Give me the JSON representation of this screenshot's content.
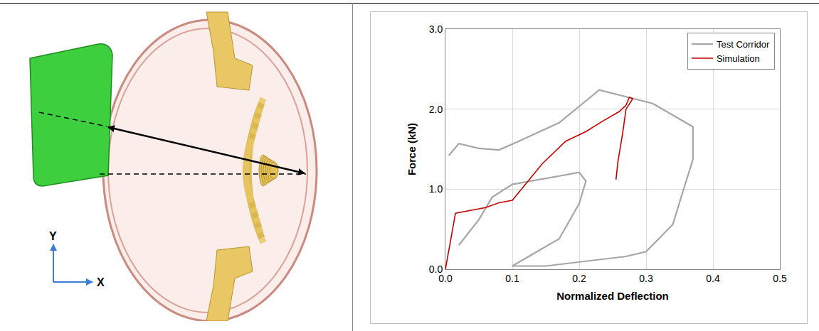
{
  "diagram": {
    "axis_labels": {
      "y": "Y",
      "x": "X"
    }
  },
  "chart_data": {
    "type": "line",
    "xlabel": "Normalized Deflection",
    "ylabel": "Force (kN)",
    "xlim": [
      0,
      0.5
    ],
    "xticks": [
      {
        "value": 0,
        "label": "0.0"
      },
      0.1,
      0.2,
      0.3,
      0.4,
      0.5
    ],
    "ylim": [
      0,
      3
    ],
    "yticks": [
      {
        "value": 0,
        "label": "0.0"
      },
      {
        "value": 1,
        "label": "1.0"
      },
      {
        "value": 2,
        "label": "2.0"
      },
      {
        "value": 3,
        "label": "3.0"
      }
    ],
    "grid": true,
    "legend": "upper right",
    "series": [
      {
        "name": "Test Corridor",
        "color": "#a6a6a6",
        "x": [
          0.005,
          0.02,
          0.05,
          0.08,
          0.11,
          0.17,
          0.23,
          0.31,
          0.37,
          0.37,
          0.355,
          0.34,
          0.3,
          0.27,
          0.15,
          0.1,
          0.17,
          0.2,
          0.21,
          0.2,
          0.1,
          0.07,
          0.05,
          0.02
        ],
        "values": [
          1.42,
          1.57,
          1.51,
          1.49,
          1.6,
          1.83,
          2.24,
          2.07,
          1.78,
          1.37,
          0.97,
          0.56,
          0.22,
          0.16,
          0.04,
          0.04,
          0.38,
          0.82,
          1.1,
          1.21,
          1.06,
          0.9,
          0.62,
          0.3
        ]
      },
      {
        "name": "Simulation",
        "color": "#c00000",
        "x": [
          0,
          0.015,
          0.06,
          0.08,
          0.1,
          0.145,
          0.18,
          0.21,
          0.235,
          0.26,
          0.27,
          0.275,
          0.28,
          0.27,
          0.265,
          0.258,
          0.255
        ],
        "values": [
          0,
          0.7,
          0.77,
          0.83,
          0.86,
          1.32,
          1.6,
          1.72,
          1.85,
          1.97,
          2.05,
          2.15,
          2.13,
          2.0,
          1.7,
          1.35,
          1.12
        ]
      }
    ]
  }
}
